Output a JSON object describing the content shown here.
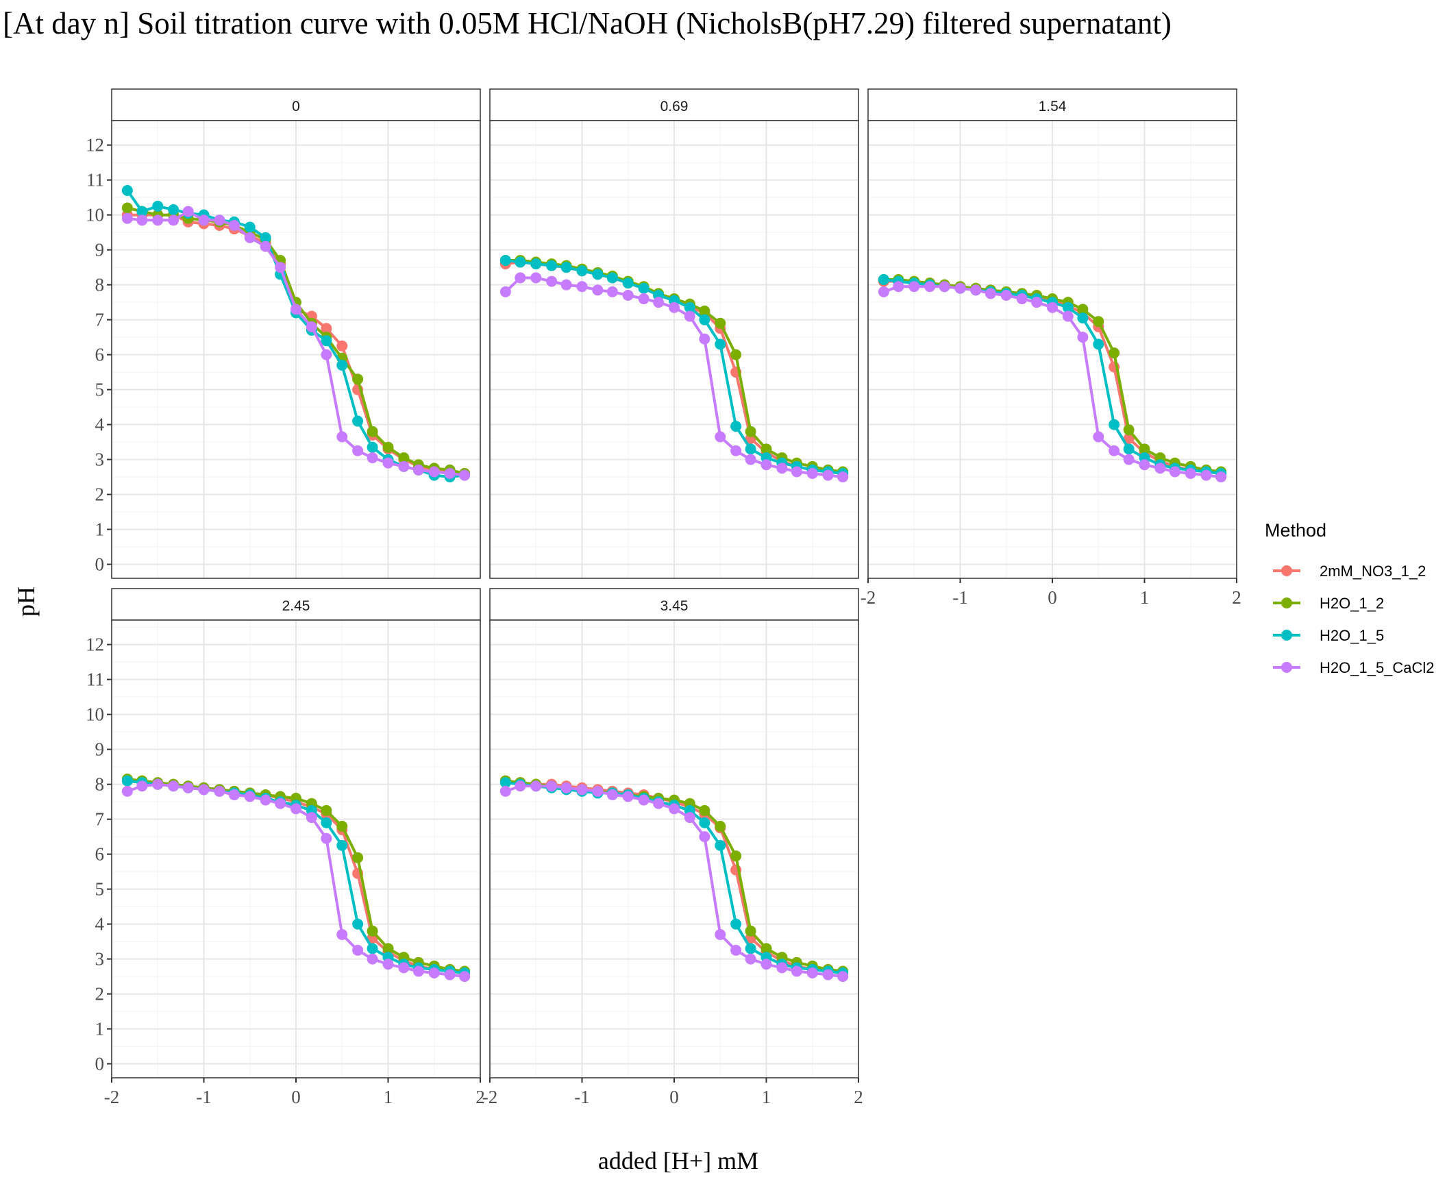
{
  "chart_data": {
    "type": "line",
    "title": "[At day n] Soil titration curve with 0.05M HCl/NaOH (NicholsB(pH7.29) filtered supernatant)",
    "xlabel": "added [H+] mM",
    "ylabel": "pH",
    "xlim": [
      -2,
      2
    ],
    "ylim": [
      -0.4,
      12.7
    ],
    "x_ticks": [
      "-2",
      "-1",
      "0",
      "1",
      "2"
    ],
    "y_ticks": [
      "0",
      "1",
      "2",
      "3",
      "4",
      "5",
      "6",
      "7",
      "8",
      "9",
      "10",
      "11",
      "12"
    ],
    "grid": true,
    "legend": {
      "title": "Method",
      "position": "right",
      "entries": [
        {
          "name": "2mM_NO3_1_2",
          "color": "#F8766D"
        },
        {
          "name": "H2O_1_2",
          "color": "#7CAE00"
        },
        {
          "name": "H2O_1_5",
          "color": "#00BFC4"
        },
        {
          "name": "H2O_1_5_CaCl2",
          "color": "#C77CFF"
        }
      ]
    },
    "x": [
      -1.83,
      -1.67,
      -1.5,
      -1.33,
      -1.17,
      -1.0,
      -0.83,
      -0.67,
      -0.5,
      -0.33,
      -0.17,
      0.0,
      0.17,
      0.33,
      0.5,
      0.67,
      0.83,
      1.0,
      1.17,
      1.33,
      1.5,
      1.67,
      1.83
    ],
    "facets": [
      {
        "label": "0",
        "series": [
          {
            "name": "2mM_NO3_1_2",
            "values": [
              10.0,
              10.0,
              10.0,
              10.0,
              9.8,
              9.75,
              9.7,
              9.6,
              9.4,
              9.2,
              8.6,
              7.3,
              7.1,
              6.75,
              6.25,
              5.0,
              3.7,
              3.3,
              3.0,
              2.8,
              2.7,
              2.65,
              2.6
            ]
          },
          {
            "name": "H2O_1_2",
            "values": [
              10.2,
              10.1,
              10.0,
              10.0,
              9.9,
              9.85,
              9.8,
              9.7,
              9.5,
              9.3,
              8.7,
              7.5,
              6.9,
              6.5,
              5.9,
              5.3,
              3.8,
              3.35,
              3.05,
              2.85,
              2.75,
              2.7,
              2.6
            ]
          },
          {
            "name": "H2O_1_5",
            "values": [
              10.7,
              10.1,
              10.25,
              10.15,
              10.05,
              10.0,
              9.85,
              9.8,
              9.65,
              9.35,
              8.3,
              7.2,
              6.7,
              6.4,
              5.7,
              4.1,
              3.35,
              3.0,
              2.8,
              2.7,
              2.55,
              2.5,
              2.55
            ]
          },
          {
            "name": "H2O_1_5_CaCl2",
            "values": [
              9.9,
              9.85,
              9.85,
              9.85,
              10.1,
              9.85,
              9.85,
              9.7,
              9.35,
              9.1,
              8.5,
              7.3,
              6.8,
              6.0,
              3.65,
              3.25,
              3.05,
              2.9,
              2.8,
              2.7,
              2.65,
              2.6,
              2.55
            ]
          }
        ]
      },
      {
        "label": "0.69",
        "series": [
          {
            "name": "2mM_NO3_1_2",
            "values": [
              8.6,
              8.65,
              8.6,
              8.55,
              8.5,
              8.4,
              8.3,
              8.2,
              8.05,
              7.9,
              7.7,
              7.55,
              7.35,
              7.2,
              6.75,
              5.5,
              3.6,
              3.2,
              2.95,
              2.8,
              2.7,
              2.65,
              2.6
            ]
          },
          {
            "name": "H2O_1_2",
            "values": [
              8.7,
              8.7,
              8.65,
              8.6,
              8.55,
              8.45,
              8.35,
              8.25,
              8.1,
              7.95,
              7.75,
              7.6,
              7.45,
              7.25,
              6.9,
              6.0,
              3.8,
              3.3,
              3.05,
              2.9,
              2.8,
              2.7,
              2.65
            ]
          },
          {
            "name": "H2O_1_5",
            "values": [
              8.7,
              8.65,
              8.6,
              8.55,
              8.5,
              8.4,
              8.3,
              8.2,
              8.05,
              7.9,
              7.7,
              7.55,
              7.35,
              7.0,
              6.3,
              3.95,
              3.3,
              3.05,
              2.9,
              2.8,
              2.7,
              2.65,
              2.6
            ]
          },
          {
            "name": "H2O_1_5_CaCl2",
            "values": [
              7.8,
              8.2,
              8.2,
              8.1,
              8.0,
              7.95,
              7.85,
              7.8,
              7.7,
              7.6,
              7.5,
              7.35,
              7.1,
              6.45,
              3.65,
              3.25,
              3.0,
              2.85,
              2.75,
              2.65,
              2.6,
              2.55,
              2.5
            ]
          }
        ]
      },
      {
        "label": "1.54",
        "series": [
          {
            "name": "2mM_NO3_1_2",
            "values": [
              8.1,
              8.1,
              8.05,
              8.05,
              8.0,
              7.95,
              7.9,
              7.85,
              7.8,
              7.75,
              7.65,
              7.55,
              7.4,
              7.2,
              6.8,
              5.65,
              3.6,
              3.2,
              2.95,
              2.8,
              2.7,
              2.65,
              2.6
            ]
          },
          {
            "name": "H2O_1_2",
            "values": [
              8.15,
              8.15,
              8.1,
              8.05,
              8.0,
              7.95,
              7.9,
              7.85,
              7.8,
              7.75,
              7.7,
              7.6,
              7.5,
              7.3,
              6.95,
              6.05,
              3.85,
              3.3,
              3.05,
              2.9,
              2.8,
              2.7,
              2.65
            ]
          },
          {
            "name": "H2O_1_5",
            "values": [
              8.15,
              8.1,
              8.05,
              8.0,
              7.95,
              7.9,
              7.85,
              7.8,
              7.75,
              7.7,
              7.6,
              7.5,
              7.35,
              7.05,
              6.3,
              4.0,
              3.3,
              3.05,
              2.85,
              2.75,
              2.7,
              2.65,
              2.6
            ]
          },
          {
            "name": "H2O_1_5_CaCl2",
            "values": [
              7.8,
              7.95,
              7.95,
              7.95,
              7.95,
              7.9,
              7.85,
              7.75,
              7.7,
              7.6,
              7.5,
              7.35,
              7.1,
              6.5,
              3.65,
              3.25,
              3.0,
              2.85,
              2.75,
              2.65,
              2.6,
              2.55,
              2.5
            ]
          }
        ]
      },
      {
        "label": "2.45",
        "series": [
          {
            "name": "2mM_NO3_1_2",
            "values": [
              8.1,
              8.05,
              8.0,
              8.0,
              7.95,
              7.9,
              7.85,
              7.8,
              7.75,
              7.7,
              7.6,
              7.5,
              7.35,
              7.15,
              6.7,
              5.45,
              3.6,
              3.2,
              2.95,
              2.8,
              2.7,
              2.65,
              2.6
            ]
          },
          {
            "name": "H2O_1_2",
            "values": [
              8.15,
              8.1,
              8.05,
              8.0,
              7.95,
              7.9,
              7.85,
              7.8,
              7.75,
              7.7,
              7.65,
              7.6,
              7.45,
              7.25,
              6.8,
              5.9,
              3.8,
              3.3,
              3.05,
              2.9,
              2.8,
              2.7,
              2.65
            ]
          },
          {
            "name": "H2O_1_5",
            "values": [
              8.1,
              8.05,
              8.0,
              7.95,
              7.9,
              7.85,
              7.8,
              7.75,
              7.7,
              7.6,
              7.5,
              7.4,
              7.25,
              6.9,
              6.25,
              4.0,
              3.3,
              3.05,
              2.85,
              2.75,
              2.7,
              2.65,
              2.6
            ]
          },
          {
            "name": "H2O_1_5_CaCl2",
            "values": [
              7.8,
              7.95,
              8.0,
              7.95,
              7.9,
              7.85,
              7.8,
              7.7,
              7.65,
              7.55,
              7.45,
              7.3,
              7.05,
              6.45,
              3.7,
              3.25,
              3.0,
              2.85,
              2.75,
              2.65,
              2.6,
              2.55,
              2.5
            ]
          }
        ]
      },
      {
        "label": "3.45",
        "series": [
          {
            "name": "2mM_NO3_1_2",
            "values": [
              8.1,
              8.05,
              8.0,
              8.0,
              7.95,
              7.9,
              7.85,
              7.8,
              7.75,
              7.7,
              7.6,
              7.5,
              7.35,
              7.15,
              6.75,
              5.55,
              3.6,
              3.2,
              2.95,
              2.8,
              2.7,
              2.65,
              2.6
            ]
          },
          {
            "name": "H2O_1_2",
            "values": [
              8.1,
              8.05,
              8.0,
              7.95,
              7.9,
              7.85,
              7.8,
              7.75,
              7.7,
              7.65,
              7.6,
              7.55,
              7.45,
              7.25,
              6.8,
              5.95,
              3.8,
              3.3,
              3.05,
              2.9,
              2.8,
              2.7,
              2.65
            ]
          },
          {
            "name": "H2O_1_5",
            "values": [
              8.05,
              8.0,
              7.95,
              7.9,
              7.85,
              7.8,
              7.75,
              7.75,
              7.7,
              7.6,
              7.5,
              7.4,
              7.25,
              6.9,
              6.25,
              4.0,
              3.3,
              3.05,
              2.85,
              2.75,
              2.7,
              2.65,
              2.6
            ]
          },
          {
            "name": "H2O_1_5_CaCl2",
            "values": [
              7.8,
              7.95,
              7.95,
              7.95,
              7.9,
              7.85,
              7.8,
              7.7,
              7.65,
              7.55,
              7.45,
              7.3,
              7.05,
              6.5,
              3.7,
              3.25,
              3.0,
              2.85,
              2.75,
              2.65,
              2.6,
              2.55,
              2.5
            ]
          }
        ]
      }
    ]
  }
}
